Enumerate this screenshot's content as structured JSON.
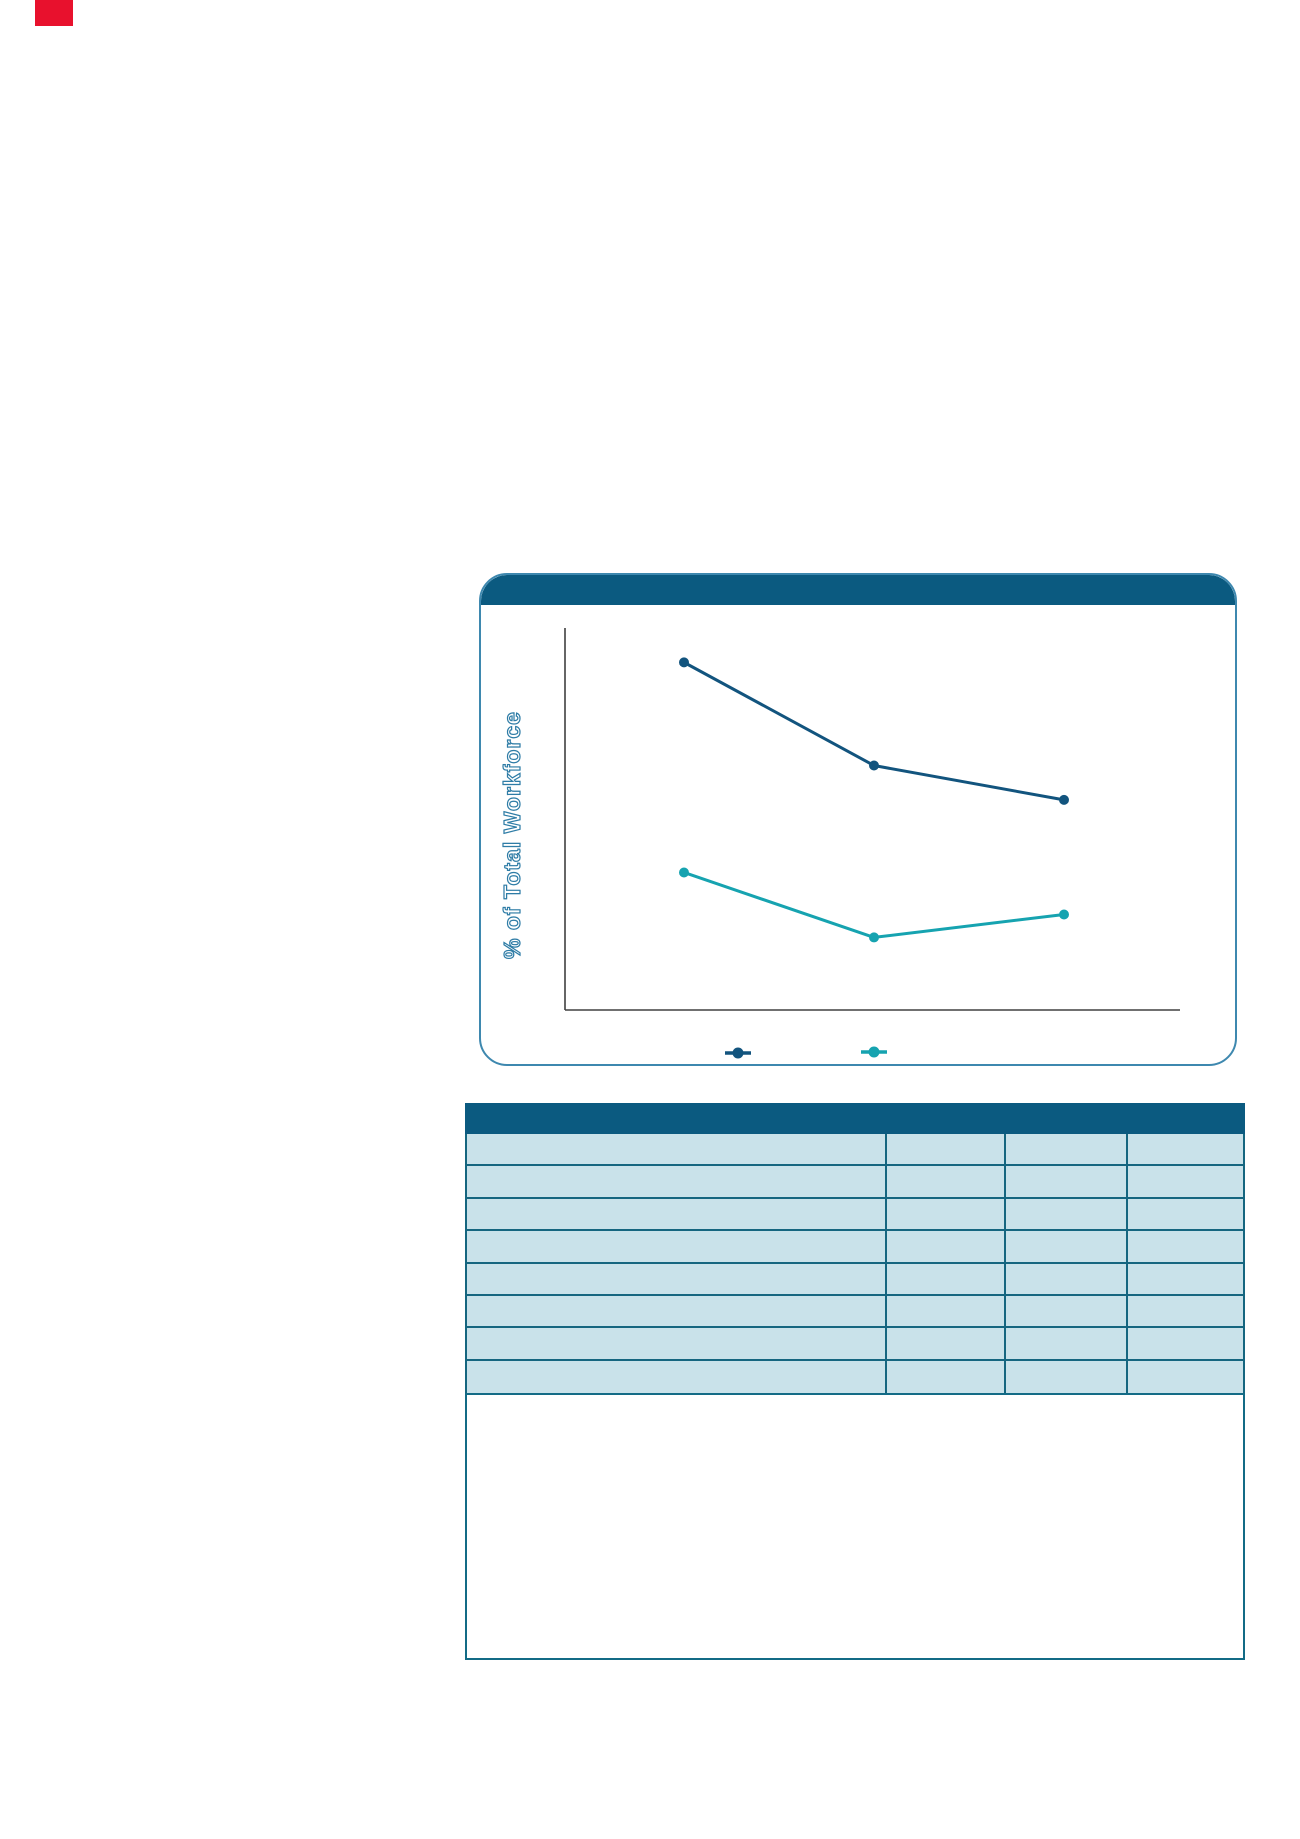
{
  "page": {
    "background": "#ffffff",
    "corner_marker_color": "#E8112D"
  },
  "chart_card": {
    "header": {
      "title": "",
      "background": "#0B5A80"
    },
    "border_color": "#3E88AF",
    "ylabel": "% of Total Workforce",
    "ylabel_color": "#2E7CA6",
    "axis_color": "#404040",
    "legend": [
      {
        "label": "",
        "color": "#12547E"
      },
      {
        "label": "",
        "color": "#16A3B0"
      }
    ]
  },
  "chart_data": {
    "type": "line",
    "title": "",
    "xlabel": "",
    "ylabel": "% of Total Workforce",
    "categories": [
      "",
      "",
      ""
    ],
    "series": [
      {
        "name": "",
        "color": "#12547E",
        "values": [
          91,
          64,
          55
        ]
      },
      {
        "name": "",
        "color": "#16A3B0",
        "values": [
          36,
          19,
          25
        ]
      }
    ],
    "ylim": [
      0,
      100
    ],
    "grid": false,
    "markers": true,
    "legend_position": "bottom-inside",
    "tick_labels_visible": false
  },
  "table": {
    "header": {
      "background": "#0B5A80",
      "cells": [
        "",
        "",
        "",
        ""
      ]
    },
    "row_background": "#C9E2EA",
    "grid_color": "#156680",
    "rows": [
      [
        "",
        "",
        "",
        ""
      ],
      [
        "",
        "",
        "",
        ""
      ],
      [
        "",
        "",
        "",
        ""
      ],
      [
        "",
        "",
        "",
        ""
      ],
      [
        "",
        "",
        "",
        ""
      ],
      [
        "",
        "",
        "",
        ""
      ],
      [
        "",
        "",
        "",
        ""
      ],
      [
        "",
        "",
        "",
        ""
      ]
    ]
  },
  "notes_box": {
    "content": "",
    "border_color": "#136B86"
  }
}
